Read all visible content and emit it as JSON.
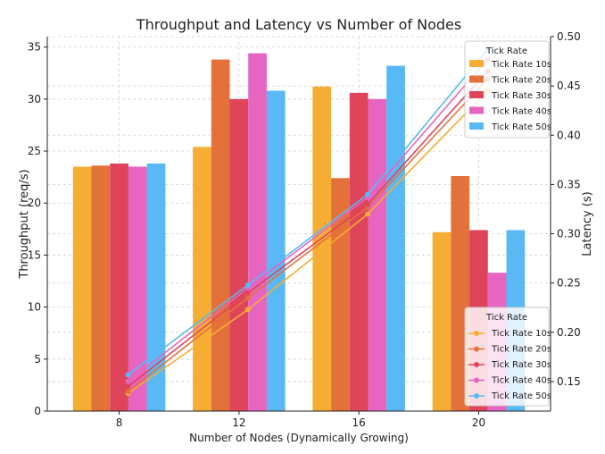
{
  "chart_data": {
    "type": "bar",
    "title": "Throughput and Latency vs Number of Nodes",
    "xlabel": "Number of Nodes (Dynamically Growing)",
    "categories": [
      "8",
      "12",
      "16",
      "20"
    ],
    "y_left": {
      "label": "Throughput (req/s)",
      "lim": [
        0,
        36
      ],
      "ticks": [
        0,
        5,
        10,
        15,
        20,
        25,
        30,
        35
      ]
    },
    "y_right": {
      "label": "Latency (s)",
      "lim": [
        0.12,
        0.5
      ],
      "ticks": [
        0.15,
        0.2,
        0.25,
        0.3,
        0.35,
        0.4,
        0.45,
        0.5
      ]
    },
    "grid": true,
    "bar_legend": {
      "title": "Tick Rate",
      "placement": "top-right"
    },
    "line_legend": {
      "title": "Tick Rate",
      "placement": "bottom-right"
    },
    "bar_series": [
      {
        "name": "Tick Rate 10s",
        "color": "#f5ad33",
        "values": [
          23.5,
          25.4,
          31.2,
          17.2
        ]
      },
      {
        "name": "Tick Rate 20s",
        "color": "#e4713a",
        "values": [
          23.6,
          33.8,
          22.4,
          22.6
        ]
      },
      {
        "name": "Tick Rate 30s",
        "color": "#e0445a",
        "values": [
          23.8,
          30.0,
          30.6,
          17.4
        ]
      },
      {
        "name": "Tick Rate 40s",
        "color": "#e565c0",
        "values": [
          23.5,
          34.4,
          30.0,
          13.3
        ]
      },
      {
        "name": "Tick Rate 50s",
        "color": "#58b9f5",
        "values": [
          23.8,
          30.8,
          33.2,
          17.4
        ]
      }
    ],
    "line_series": [
      {
        "name": "Tick Rate 10s",
        "color": "#f5ad33",
        "values": [
          0.138,
          0.223,
          0.32,
          0.445
        ]
      },
      {
        "name": "Tick Rate 20s",
        "color": "#e4713a",
        "values": [
          0.14,
          0.235,
          0.327,
          0.457
        ]
      },
      {
        "name": "Tick Rate 30s",
        "color": "#e0445a",
        "values": [
          0.145,
          0.24,
          0.33,
          0.465
        ]
      },
      {
        "name": "Tick Rate 40s",
        "color": "#e565c0",
        "values": [
          0.15,
          0.245,
          0.337,
          0.477
        ]
      },
      {
        "name": "Tick Rate 50s",
        "color": "#58b9f5",
        "values": [
          0.157,
          0.248,
          0.34,
          0.487
        ]
      }
    ]
  }
}
